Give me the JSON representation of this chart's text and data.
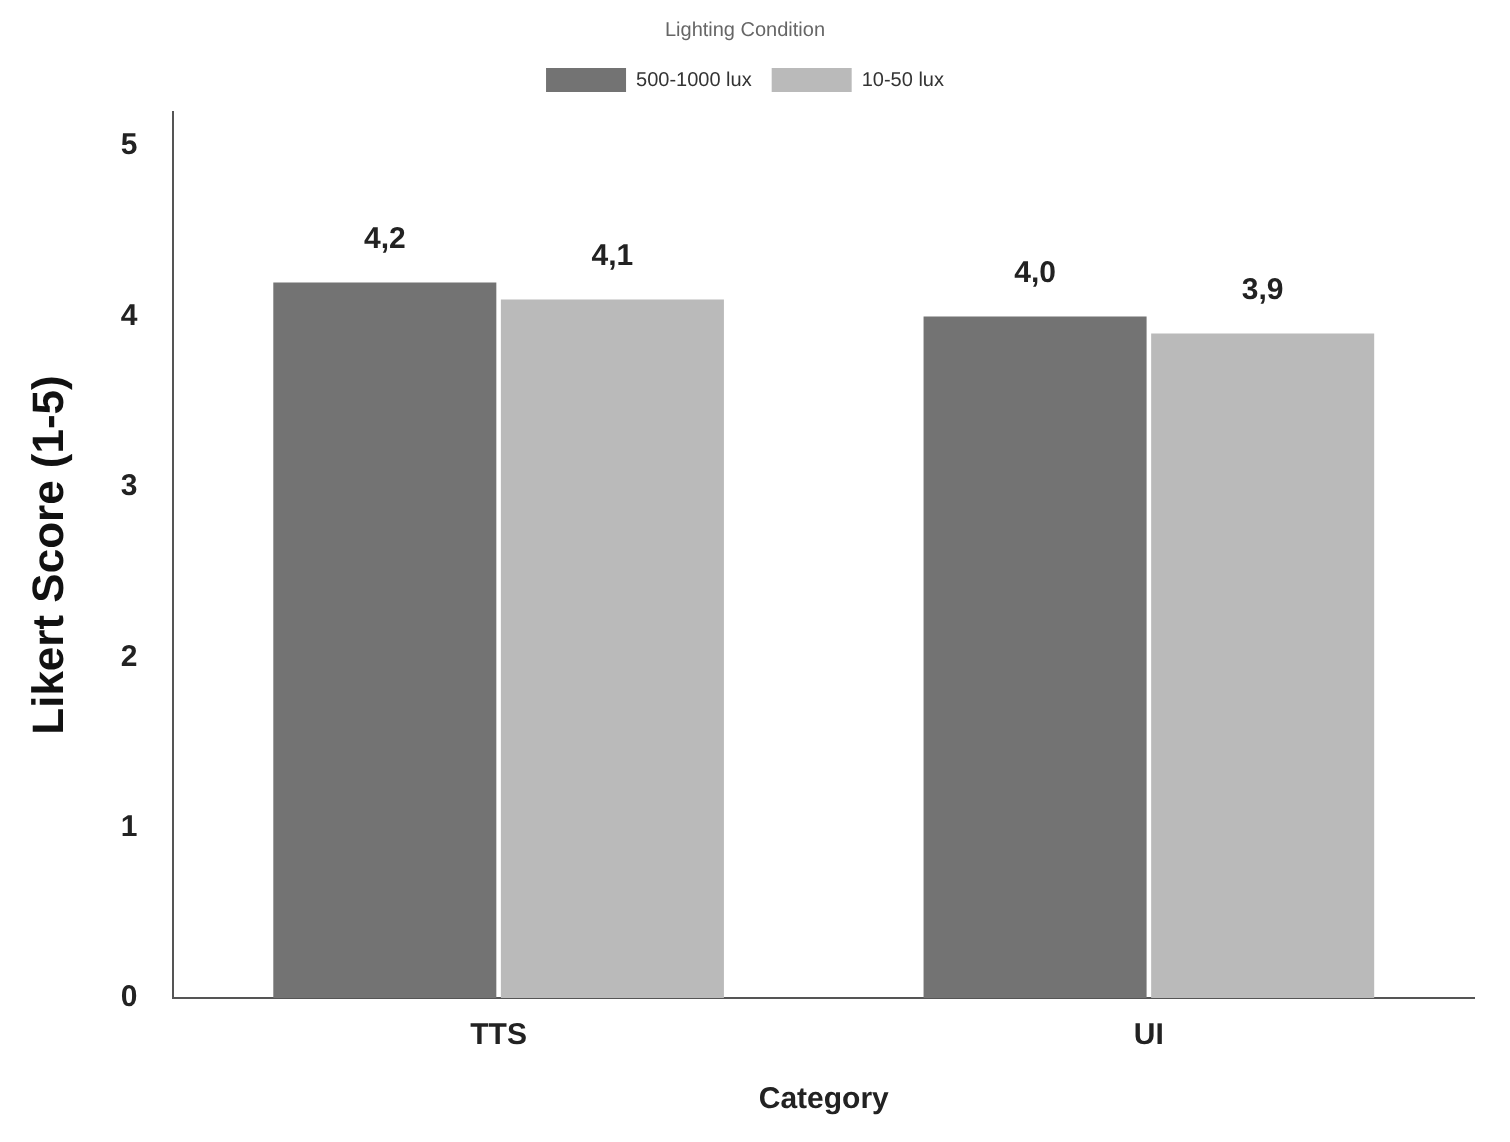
{
  "chart_data": {
    "type": "bar",
    "xlabel": "Category",
    "ylabel": "Likert Score (1-5)",
    "legend_title": "Lighting Condition",
    "categories": [
      "TTS",
      "UI"
    ],
    "series": [
      {
        "name": "500-1000 lux",
        "color": "#737373",
        "values": [
          4.2,
          4.0
        ],
        "value_labels": [
          "4,2",
          "4,0"
        ]
      },
      {
        "name": "10-50 lux",
        "color": "#bababa",
        "values": [
          4.1,
          3.9
        ],
        "value_labels": [
          "4,1",
          "3,9"
        ]
      }
    ],
    "ylim": [
      0,
      5.2
    ],
    "yticks": [
      0,
      1,
      2,
      3,
      4,
      5
    ],
    "grid": false,
    "legend": "top"
  }
}
